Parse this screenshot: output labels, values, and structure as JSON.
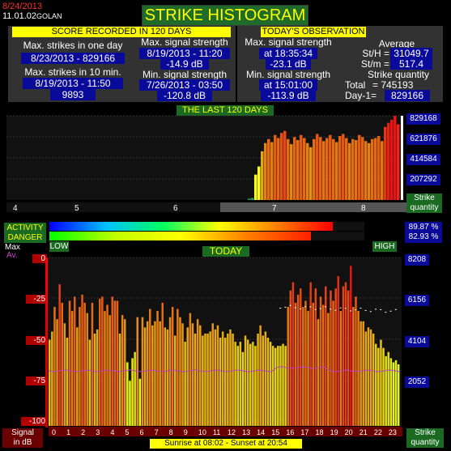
{
  "header": {
    "date": "8/24/2013",
    "version": "11.01.02",
    "location": "GOLAN",
    "title": "STRIKE HISTOGRAM"
  },
  "score": {
    "heading": "SCORE RECORDED IN 120 DAYS",
    "max_day_label": "Max. strikes in one day",
    "max_day_value": "8/23/2013 - 829166",
    "max_10min_label": "Max. strikes in 10 min.",
    "max_10min_value": "8/19/2013 - 11:50",
    "max_10min_count": "9893",
    "max_sig_label": "Max. signal strength",
    "max_sig_time": "8/19/2013 - 11:20",
    "max_sig_db": "-14.9 dB",
    "min_sig_label": "Min. signal strength",
    "min_sig_time": "7/26/2013 - 03:50",
    "min_sig_db": "-120.8 dB"
  },
  "today_obs": {
    "heading": "TODAY'S OBSERVATION",
    "max_label": "Max. signal strength",
    "max_time": "at 18:35:34",
    "max_db": "-23.1 dB",
    "min_label": "Min. signal strength",
    "min_time": "at 15:01:00",
    "min_db": "-113.9 dB",
    "avg_label": "Average",
    "sth_label": "St/H =",
    "sth_value": "31049.7",
    "stm_label": "St/m =",
    "stm_value": "517.4",
    "qty_label": "Strike quantity",
    "total_label": "Total",
    "total_value": "= 745193",
    "day1_label": "Day-1=",
    "day1_value": "829166"
  },
  "last120": {
    "heading": "THE LAST 120 DAYS",
    "yticks": [
      "829168",
      "621876",
      "414584",
      "207292"
    ],
    "months": [
      "4",
      "5",
      "6",
      "7",
      "8"
    ],
    "axis_label_1": "Strike",
    "axis_label_2": "quantity"
  },
  "meters": {
    "activity_label": "ACTIVITY",
    "danger_label": "DANGER",
    "activity_value": "89.87 %",
    "danger_value": "82.93 %",
    "activity_fraction": 0.8987,
    "danger_fraction": 0.8293,
    "low_label": "LOW",
    "high_label": "HIGH"
  },
  "today_chart": {
    "heading": "TODAY",
    "max_legend": "Max",
    "avg_legend": "Av.",
    "left_ticks": [
      "0",
      "-25",
      "-50",
      "-75",
      "-100"
    ],
    "right_ticks": [
      "8208",
      "6156",
      "4104",
      "2052"
    ],
    "hours": [
      "0",
      "1",
      "2",
      "3",
      "4",
      "5",
      "6",
      "7",
      "8",
      "9",
      "10",
      "11",
      "12",
      "13",
      "14",
      "15",
      "16",
      "17",
      "18",
      "19",
      "20",
      "21",
      "22",
      "23"
    ],
    "left_axis_1": "Signal",
    "left_axis_2": "in dB",
    "right_axis_1": "Strike",
    "right_axis_2": "quantity",
    "sun": "Sunrise at 08:02  -  Sunset at 20:54"
  },
  "chart_data": [
    {
      "type": "bar",
      "title": "THE LAST 120 DAYS",
      "ylabel": "Strike quantity",
      "ylim": [
        0,
        829168
      ],
      "days_values": [
        14000,
        20000,
        250000,
        330000,
        480000,
        560000,
        600000,
        570000,
        640000,
        610000,
        660000,
        680000,
        600000,
        550000,
        620000,
        590000,
        640000,
        610000,
        560000,
        520000,
        600000,
        650000,
        620000,
        580000,
        610000,
        640000,
        600000,
        570000,
        630000,
        650000,
        610000,
        560000,
        600000,
        590000,
        640000,
        620000,
        580000,
        560000,
        600000,
        610000,
        630000,
        580000,
        720000,
        760000,
        790000,
        829166,
        745193
      ]
    },
    {
      "type": "bar",
      "title": "TODAY",
      "xlabel": "hour",
      "ylabel": "Strike quantity",
      "ylim": [
        0,
        8208
      ],
      "values": [
        4200,
        4600,
        5800,
        5200,
        6900,
        6000,
        5000,
        4300,
        6100,
        5600,
        6300,
        4800,
        5800,
        6400,
        6000,
        5500,
        4200,
        6000,
        4500,
        4700,
        6200,
        6300,
        5600,
        5900,
        5400,
        6300,
        6100,
        6100,
        4500,
        5400,
        5200,
        3100,
        2200,
        3300,
        3600,
        5300,
        2300,
        5300,
        4800,
        5100,
        5700,
        4900,
        5100,
        5600,
        5100,
        6000,
        4800,
        4700,
        5300,
        5800,
        4400,
        5700,
        5300,
        5000,
        4100,
        4800,
        5500,
        5000,
        4500,
        5200,
        4900,
        4400,
        4500,
        4500,
        4600,
        5000,
        4700,
        4900,
        4300,
        4600,
        4300,
        4500,
        4700,
        4500,
        4100,
        3900,
        4100,
        3600,
        4400,
        4200,
        4000,
        4100,
        3900,
        4500,
        4900,
        4400,
        4600,
        4300,
        4100,
        3900,
        3800,
        3900,
        3900,
        4000,
        3900,
        5800,
        6600,
        7000,
        6000,
        6400,
        6700,
        5800,
        6100,
        5600,
        7000,
        6000,
        6700,
        5200,
        6300,
        5900,
        6800,
        5500,
        6600,
        6100,
        6700,
        7300,
        5600,
        6800,
        7000,
        6600,
        7800,
        5800,
        6300,
        5600,
        5100,
        5100,
        4600,
        4800,
        4700,
        4500,
        4000,
        3800,
        4200,
        3800,
        3400,
        3600,
        3300,
        3100,
        3200,
        3000
      ]
    }
  ]
}
